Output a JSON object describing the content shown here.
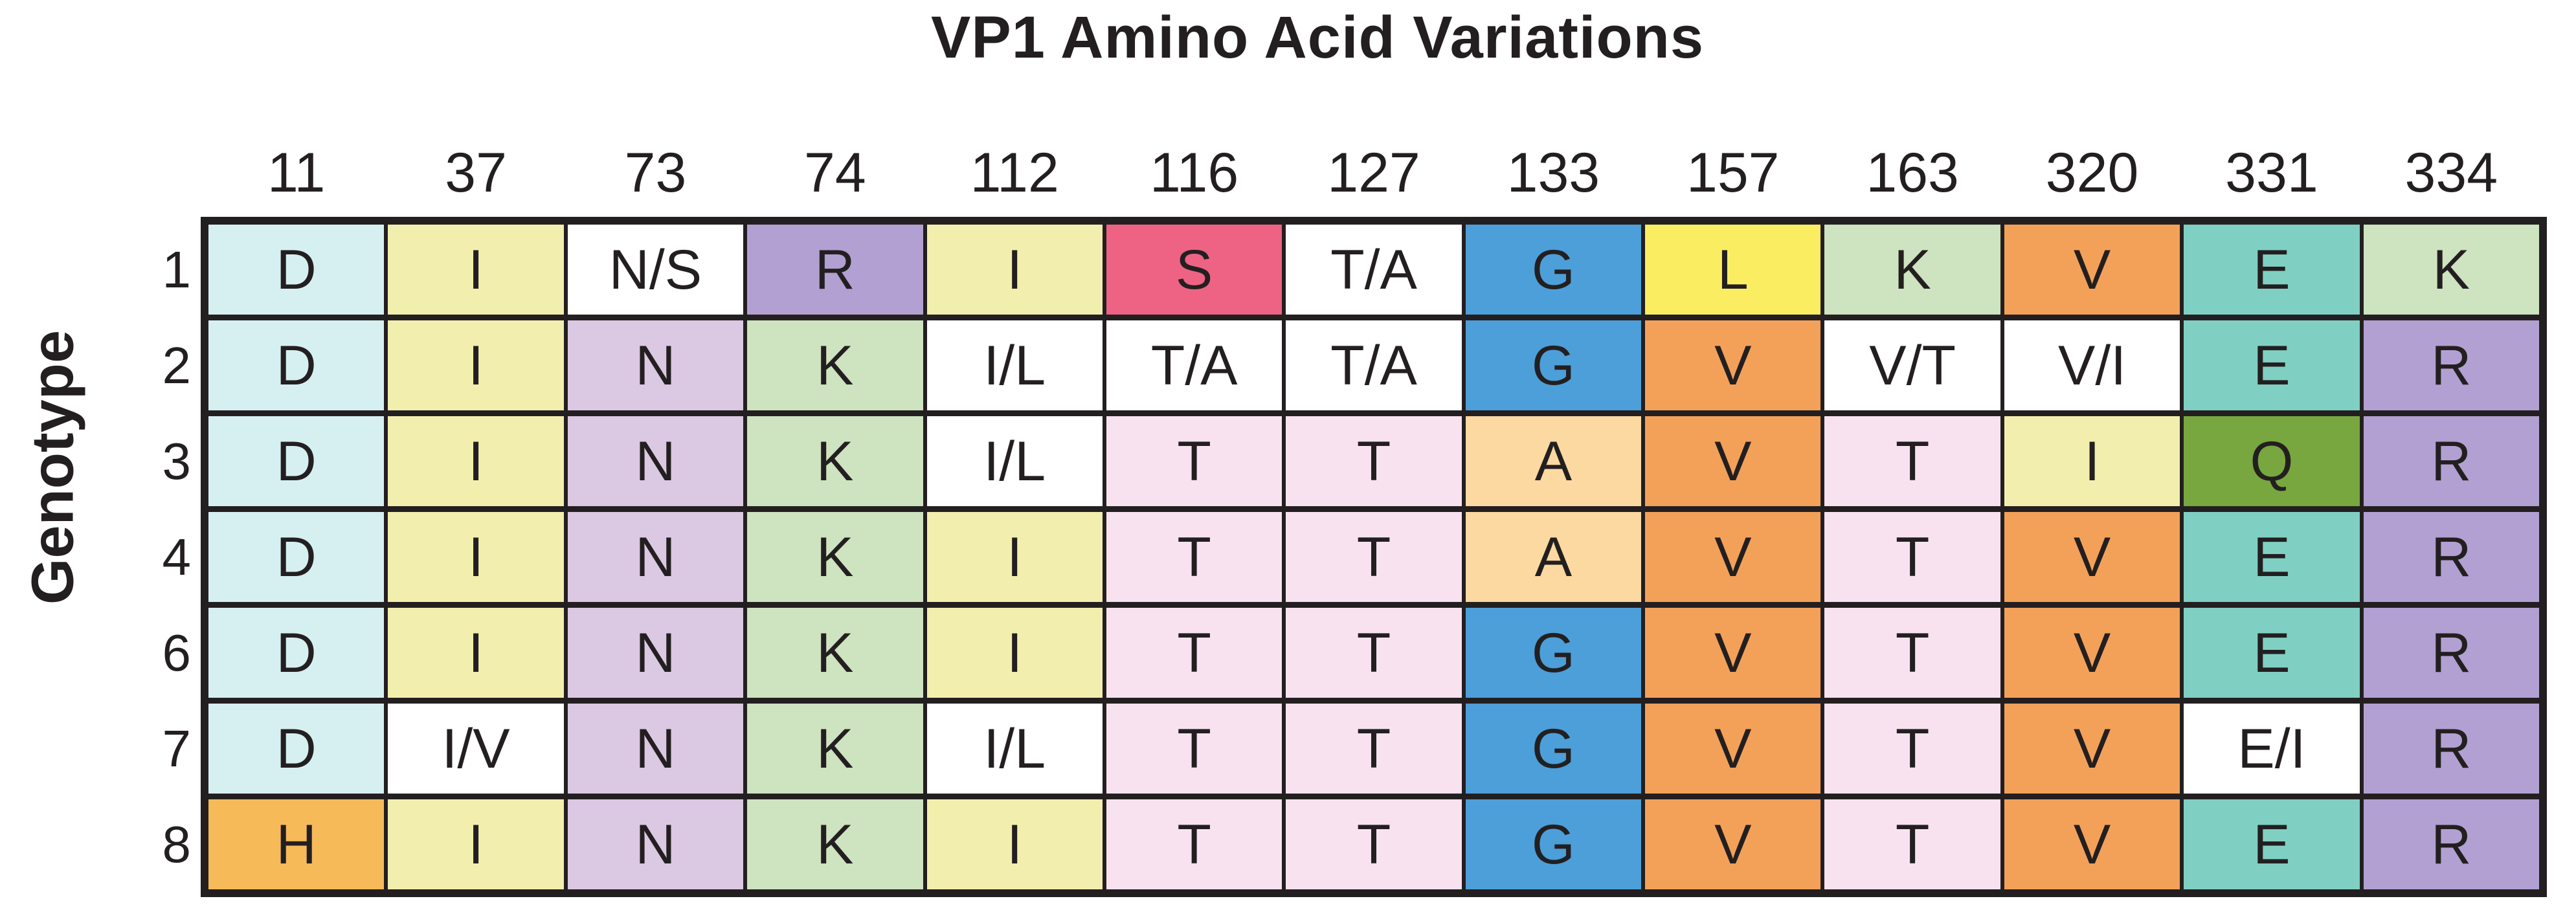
{
  "title": "VP1 Amino Acid Variations",
  "y_axis_label": "Genotype",
  "ink_color": "#231f20",
  "palette": {
    "cyan": "#D6F0F2",
    "paleYellow": "#F2EFAE",
    "white": "#FFFFFF",
    "purple": "#B2A0D2",
    "lavender": "#DBC8E2",
    "green": "#CEE3C0",
    "rose": "#EE6384",
    "blue": "#4C9FD9",
    "brightYellow": "#FAED62",
    "orange": "#F3A159",
    "teal": "#7FD0C2",
    "peach": "#FBD9A1",
    "pink": "#F8E2F0",
    "olive": "#77A73E",
    "lightOrange": "#F7BA59"
  },
  "chart_data": {
    "type": "heatmap",
    "title": "VP1 Amino Acid Variations",
    "xlabel": "",
    "ylabel": "Genotype",
    "legend": "none",
    "grid": "black cell borders",
    "positions": [
      "11",
      "37",
      "73",
      "74",
      "112",
      "116",
      "127",
      "133",
      "157",
      "163",
      "320",
      "331",
      "334"
    ],
    "genotypes": [
      "1",
      "2",
      "3",
      "4",
      "6",
      "7",
      "8"
    ],
    "rows": [
      [
        {
          "aa": "D",
          "bg": "cyan"
        },
        {
          "aa": "I",
          "bg": "paleYellow"
        },
        {
          "aa": "N/S",
          "bg": "white"
        },
        {
          "aa": "R",
          "bg": "purple"
        },
        {
          "aa": "I",
          "bg": "paleYellow"
        },
        {
          "aa": "S",
          "bg": "rose"
        },
        {
          "aa": "T/A",
          "bg": "white"
        },
        {
          "aa": "G",
          "bg": "blue"
        },
        {
          "aa": "L",
          "bg": "brightYellow"
        },
        {
          "aa": "K",
          "bg": "green"
        },
        {
          "aa": "V",
          "bg": "orange"
        },
        {
          "aa": "E",
          "bg": "teal"
        },
        {
          "aa": "K",
          "bg": "green"
        }
      ],
      [
        {
          "aa": "D",
          "bg": "cyan"
        },
        {
          "aa": "I",
          "bg": "paleYellow"
        },
        {
          "aa": "N",
          "bg": "lavender"
        },
        {
          "aa": "K",
          "bg": "green"
        },
        {
          "aa": "I/L",
          "bg": "white"
        },
        {
          "aa": "T/A",
          "bg": "white"
        },
        {
          "aa": "T/A",
          "bg": "white"
        },
        {
          "aa": "G",
          "bg": "blue"
        },
        {
          "aa": "V",
          "bg": "orange"
        },
        {
          "aa": "V/T",
          "bg": "white"
        },
        {
          "aa": "V/I",
          "bg": "white"
        },
        {
          "aa": "E",
          "bg": "teal"
        },
        {
          "aa": "R",
          "bg": "purple"
        }
      ],
      [
        {
          "aa": "D",
          "bg": "cyan"
        },
        {
          "aa": "I",
          "bg": "paleYellow"
        },
        {
          "aa": "N",
          "bg": "lavender"
        },
        {
          "aa": "K",
          "bg": "green"
        },
        {
          "aa": "I/L",
          "bg": "white"
        },
        {
          "aa": "T",
          "bg": "pink"
        },
        {
          "aa": "T",
          "bg": "pink"
        },
        {
          "aa": "A",
          "bg": "peach"
        },
        {
          "aa": "V",
          "bg": "orange"
        },
        {
          "aa": "T",
          "bg": "pink"
        },
        {
          "aa": "I",
          "bg": "paleYellow"
        },
        {
          "aa": "Q",
          "bg": "olive"
        },
        {
          "aa": "R",
          "bg": "purple"
        }
      ],
      [
        {
          "aa": "D",
          "bg": "cyan"
        },
        {
          "aa": "I",
          "bg": "paleYellow"
        },
        {
          "aa": "N",
          "bg": "lavender"
        },
        {
          "aa": "K",
          "bg": "green"
        },
        {
          "aa": "I",
          "bg": "paleYellow"
        },
        {
          "aa": "T",
          "bg": "pink"
        },
        {
          "aa": "T",
          "bg": "pink"
        },
        {
          "aa": "A",
          "bg": "peach"
        },
        {
          "aa": "V",
          "bg": "orange"
        },
        {
          "aa": "T",
          "bg": "pink"
        },
        {
          "aa": "V",
          "bg": "orange"
        },
        {
          "aa": "E",
          "bg": "teal"
        },
        {
          "aa": "R",
          "bg": "purple"
        }
      ],
      [
        {
          "aa": "D",
          "bg": "cyan"
        },
        {
          "aa": "I",
          "bg": "paleYellow"
        },
        {
          "aa": "N",
          "bg": "lavender"
        },
        {
          "aa": "K",
          "bg": "green"
        },
        {
          "aa": "I",
          "bg": "paleYellow"
        },
        {
          "aa": "T",
          "bg": "pink"
        },
        {
          "aa": "T",
          "bg": "pink"
        },
        {
          "aa": "G",
          "bg": "blue"
        },
        {
          "aa": "V",
          "bg": "orange"
        },
        {
          "aa": "T",
          "bg": "pink"
        },
        {
          "aa": "V",
          "bg": "orange"
        },
        {
          "aa": "E",
          "bg": "teal"
        },
        {
          "aa": "R",
          "bg": "purple"
        }
      ],
      [
        {
          "aa": "D",
          "bg": "cyan"
        },
        {
          "aa": "I/V",
          "bg": "white"
        },
        {
          "aa": "N",
          "bg": "lavender"
        },
        {
          "aa": "K",
          "bg": "green"
        },
        {
          "aa": "I/L",
          "bg": "white"
        },
        {
          "aa": "T",
          "bg": "pink"
        },
        {
          "aa": "T",
          "bg": "pink"
        },
        {
          "aa": "G",
          "bg": "blue"
        },
        {
          "aa": "V",
          "bg": "orange"
        },
        {
          "aa": "T",
          "bg": "pink"
        },
        {
          "aa": "V",
          "bg": "orange"
        },
        {
          "aa": "E/I",
          "bg": "white"
        },
        {
          "aa": "R",
          "bg": "purple"
        }
      ],
      [
        {
          "aa": "H",
          "bg": "lightOrange"
        },
        {
          "aa": "I",
          "bg": "paleYellow"
        },
        {
          "aa": "N",
          "bg": "lavender"
        },
        {
          "aa": "K",
          "bg": "green"
        },
        {
          "aa": "I",
          "bg": "paleYellow"
        },
        {
          "aa": "T",
          "bg": "pink"
        },
        {
          "aa": "T",
          "bg": "pink"
        },
        {
          "aa": "G",
          "bg": "blue"
        },
        {
          "aa": "V",
          "bg": "orange"
        },
        {
          "aa": "T",
          "bg": "pink"
        },
        {
          "aa": "V",
          "bg": "orange"
        },
        {
          "aa": "E",
          "bg": "teal"
        },
        {
          "aa": "R",
          "bg": "purple"
        }
      ]
    ]
  }
}
